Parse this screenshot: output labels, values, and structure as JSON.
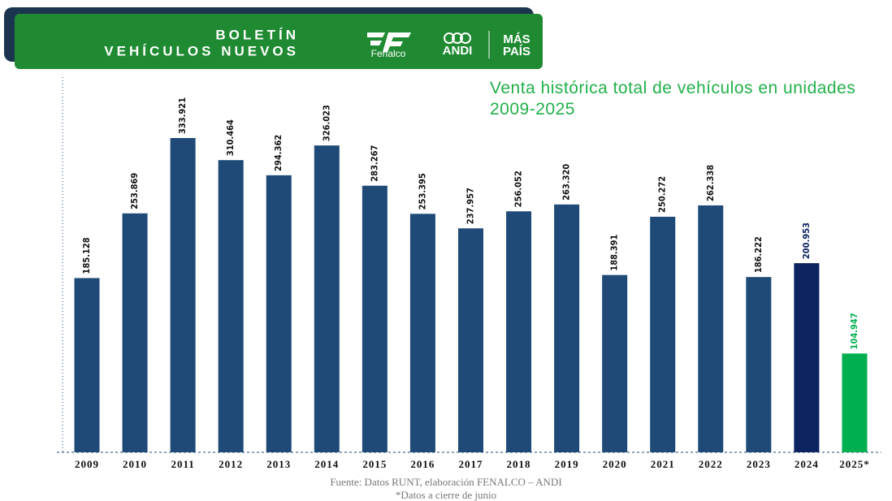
{
  "header": {
    "title_line1": "BOLETÍN",
    "title_line2": "VEHÍCULOS NUEVOS",
    "logo1": "Fenalco",
    "logo2": "ANDI",
    "logo3_line1": "MÁS",
    "logo3_line2": "PAÍS"
  },
  "chart_data": {
    "type": "bar",
    "title": "Venta histórica total de vehículos en unidades 2009-2025",
    "categories": [
      "2009",
      "2010",
      "2011",
      "2012",
      "2013",
      "2014",
      "2015",
      "2016",
      "2017",
      "2018",
      "2019",
      "2020",
      "2021",
      "2022",
      "2023",
      "2024",
      "2025*"
    ],
    "values": [
      185128,
      253869,
      333921,
      310464,
      294362,
      326023,
      283267,
      253395,
      237957,
      256052,
      263320,
      188391,
      250272,
      262338,
      186222,
      200953,
      104947
    ],
    "value_labels": [
      "185.128",
      "253.869",
      "333.921",
      "310.464",
      "294.362",
      "326.023",
      "283.267",
      "253.395",
      "237.957",
      "256.052",
      "263.320",
      "188.391",
      "250.272",
      "262.338",
      "186.222",
      "200.953",
      "104.947"
    ],
    "colors": [
      "#1f4a78",
      "#1f4a78",
      "#1f4a78",
      "#1f4a78",
      "#1f4a78",
      "#1f4a78",
      "#1f4a78",
      "#1f4a78",
      "#1f4a78",
      "#1f4a78",
      "#1f4a78",
      "#1f4a78",
      "#1f4a78",
      "#1f4a78",
      "#1f4a78",
      "#0c2360",
      "#00b050"
    ],
    "value_label_colors": [
      "#111",
      "#111",
      "#111",
      "#111",
      "#111",
      "#111",
      "#111",
      "#111",
      "#111",
      "#111",
      "#111",
      "#111",
      "#111",
      "#111",
      "#111",
      "#0c2360",
      "#00b050"
    ],
    "source": "Fuente: Datos RUNT, elaboración FENALCO – ANDI",
    "note": "*Datos a cierre de junio"
  }
}
